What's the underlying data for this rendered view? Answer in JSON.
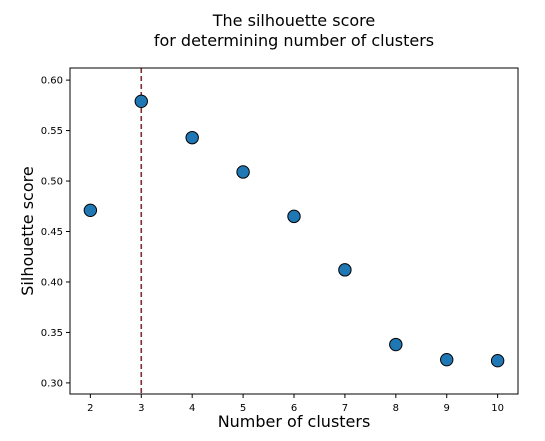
{
  "chart_data": {
    "type": "scatter",
    "title_lines": [
      "The silhouette score",
      "for determining number of clusters"
    ],
    "xlabel": "Number of clusters",
    "ylabel": "Silhouette score",
    "x": [
      2,
      3,
      4,
      5,
      6,
      7,
      8,
      9,
      10
    ],
    "y": [
      0.471,
      0.579,
      0.543,
      0.509,
      0.465,
      0.412,
      0.338,
      0.323,
      0.322
    ],
    "xlim": [
      1.6,
      10.4
    ],
    "ylim": [
      0.289,
      0.612
    ],
    "xticks": [
      "2",
      "3",
      "4",
      "5",
      "6",
      "7",
      "8",
      "9",
      "10"
    ],
    "yticks": [
      "0.30",
      "0.35",
      "0.40",
      "0.45",
      "0.50",
      "0.55",
      "0.60"
    ],
    "ytick_values": [
      0.3,
      0.35,
      0.4,
      0.45,
      0.5,
      0.55,
      0.6
    ],
    "vline_x": 3,
    "grid": false,
    "colors": {
      "marker_fill": "#1f77b4",
      "marker_edge": "#000000",
      "vline": "#7f2f2f"
    }
  }
}
